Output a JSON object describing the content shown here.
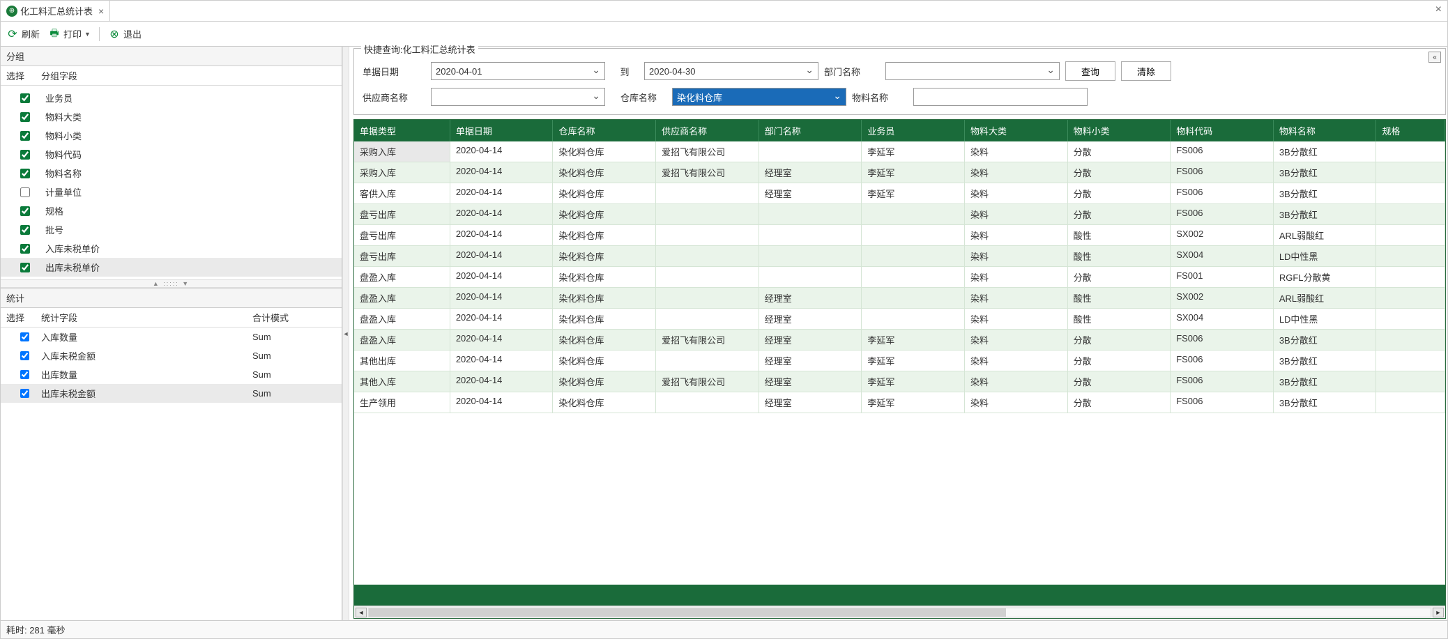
{
  "tab": {
    "title": "化工料汇总统计表"
  },
  "toolbar": {
    "refresh": "刷新",
    "print": "打印",
    "exit": "退出"
  },
  "sidebar": {
    "group_title": "分组",
    "group_header_select": "选择",
    "group_header_field": "分组字段",
    "group_items": [
      {
        "label": "业务员",
        "checked": true
      },
      {
        "label": "物料大类",
        "checked": true
      },
      {
        "label": "物料小类",
        "checked": true
      },
      {
        "label": "物料代码",
        "checked": true
      },
      {
        "label": "物料名称",
        "checked": true
      },
      {
        "label": "计量单位",
        "checked": false
      },
      {
        "label": "规格",
        "checked": true
      },
      {
        "label": "批号",
        "checked": true
      },
      {
        "label": "入库未税单价",
        "checked": true
      },
      {
        "label": "出库未税单价",
        "checked": true,
        "selected": true
      }
    ],
    "stats_title": "统计",
    "stats_header_select": "选择",
    "stats_header_field": "统计字段",
    "stats_header_mode": "合计模式",
    "stats_items": [
      {
        "label": "入库数量",
        "mode": "Sum",
        "checked": true
      },
      {
        "label": "入库未税金额",
        "mode": "Sum",
        "checked": true
      },
      {
        "label": "出库数量",
        "mode": "Sum",
        "checked": true
      },
      {
        "label": "出库未税金额",
        "mode": "Sum",
        "checked": true,
        "selected": true
      }
    ]
  },
  "query": {
    "legend": "快捷查询:化工料汇总统计表",
    "date_label": "单据日期",
    "date_from": "2020-04-01",
    "to_label": "到",
    "date_to": "2020-04-30",
    "dept_label": "部门名称",
    "dept_value": "",
    "supplier_label": "供应商名称",
    "supplier_value": "",
    "warehouse_label": "仓库名称",
    "warehouse_value": "染化料仓库",
    "material_label": "物料名称",
    "material_value": "",
    "search_btn": "查询",
    "clear_btn": "清除"
  },
  "grid": {
    "columns": [
      "单据类型",
      "单据日期",
      "仓库名称",
      "供应商名称",
      "部门名称",
      "业务员",
      "物料大类",
      "物料小类",
      "物料代码",
      "物料名称",
      "规格"
    ],
    "rows": [
      [
        "采购入库",
        "2020-04-14",
        "染化料仓库",
        "爱招飞有限公司",
        "",
        "李延军",
        "染料",
        "分散",
        "FS006",
        "3B分散红",
        ""
      ],
      [
        "采购入库",
        "2020-04-14",
        "染化料仓库",
        "爱招飞有限公司",
        "经理室",
        "李延军",
        "染料",
        "分散",
        "FS006",
        "3B分散红",
        ""
      ],
      [
        "客供入库",
        "2020-04-14",
        "染化料仓库",
        "",
        "经理室",
        "李延军",
        "染料",
        "分散",
        "FS006",
        "3B分散红",
        ""
      ],
      [
        "盘亏出库",
        "2020-04-14",
        "染化料仓库",
        "",
        "",
        "",
        "染料",
        "分散",
        "FS006",
        "3B分散红",
        ""
      ],
      [
        "盘亏出库",
        "2020-04-14",
        "染化料仓库",
        "",
        "",
        "",
        "染料",
        "酸性",
        "SX002",
        "ARL弱酸红",
        ""
      ],
      [
        "盘亏出库",
        "2020-04-14",
        "染化料仓库",
        "",
        "",
        "",
        "染料",
        "酸性",
        "SX004",
        "LD中性黑",
        ""
      ],
      [
        "盘盈入库",
        "2020-04-14",
        "染化料仓库",
        "",
        "",
        "",
        "染料",
        "分散",
        "FS001",
        "RGFL分散黄",
        ""
      ],
      [
        "盘盈入库",
        "2020-04-14",
        "染化料仓库",
        "",
        "经理室",
        "",
        "染料",
        "酸性",
        "SX002",
        "ARL弱酸红",
        ""
      ],
      [
        "盘盈入库",
        "2020-04-14",
        "染化料仓库",
        "",
        "经理室",
        "",
        "染料",
        "酸性",
        "SX004",
        "LD中性黑",
        ""
      ],
      [
        "盘盈入库",
        "2020-04-14",
        "染化料仓库",
        "爱招飞有限公司",
        "经理室",
        "李延军",
        "染料",
        "分散",
        "FS006",
        "3B分散红",
        ""
      ],
      [
        "其他出库",
        "2020-04-14",
        "染化料仓库",
        "",
        "经理室",
        "李延军",
        "染料",
        "分散",
        "FS006",
        "3B分散红",
        ""
      ],
      [
        "其他入库",
        "2020-04-14",
        "染化料仓库",
        "爱招飞有限公司",
        "经理室",
        "李延军",
        "染料",
        "分散",
        "FS006",
        "3B分散红",
        ""
      ],
      [
        "生产领用",
        "2020-04-14",
        "染化料仓库",
        "",
        "经理室",
        "李延军",
        "染料",
        "分散",
        "FS006",
        "3B分散红",
        ""
      ]
    ]
  },
  "status": {
    "text": "耗时: 281 毫秒"
  },
  "colors": {
    "header_bg": "#1a6b3a",
    "header_border": "#3a8a5a",
    "row_alt": "#eaf4ea",
    "row_border": "#d5e5d5"
  }
}
